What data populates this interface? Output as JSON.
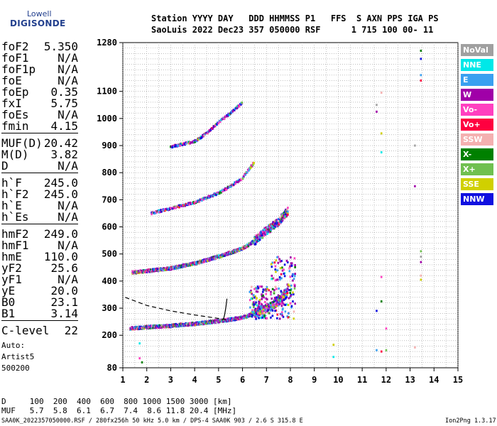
{
  "logo": {
    "line1": "Lowell",
    "line2": "DIGISONDE"
  },
  "header": {
    "line1": "Station YYYY DAY   DDD HHMMSS P1   FFS  S AXN PPS IGA PS",
    "line2": "SaoLuis 2022 Dec23 357 050000 RSF      1 715 100 00- 11"
  },
  "params": {
    "group1": [
      {
        "k": "foF2",
        "v": "5.350"
      },
      {
        "k": "foF1",
        "v": "N/A"
      },
      {
        "k": "foF1p",
        "v": "N/A"
      },
      {
        "k": "foE",
        "v": "N/A"
      },
      {
        "k": "foEp",
        "v": "0.35"
      },
      {
        "k": "fxI",
        "v": "5.75"
      },
      {
        "k": "foEs",
        "v": "N/A"
      },
      {
        "k": "fmin",
        "v": "4.15"
      }
    ],
    "group2": [
      {
        "k": "MUF(D)",
        "v": "20.42"
      },
      {
        "k": "M(D)",
        "v": "3.82"
      },
      {
        "k": "D",
        "v": "N/A"
      }
    ],
    "group3": [
      {
        "k": "h`F",
        "v": "245.0"
      },
      {
        "k": "h`F2",
        "v": "245.0"
      },
      {
        "k": "h`E",
        "v": "N/A"
      },
      {
        "k": "h`Es",
        "v": "N/A"
      }
    ],
    "group4": [
      {
        "k": "hmF2",
        "v": "249.0"
      },
      {
        "k": "hmF1",
        "v": "N/A"
      },
      {
        "k": "hmE",
        "v": "110.0"
      },
      {
        "k": "yF2",
        "v": "25.6"
      },
      {
        "k": "yF1",
        "v": "N/A"
      },
      {
        "k": "yE",
        "v": "20.0"
      },
      {
        "k": "B0",
        "v": "23.1"
      },
      {
        "k": "B1",
        "v": "3.14"
      }
    ],
    "group5": [
      {
        "k": "C-level",
        "v": "22"
      }
    ]
  },
  "autoscaling": {
    "line1": "Auto:",
    "line2": "Artist5",
    "line3": "500200"
  },
  "legend": [
    {
      "label": "NoVal",
      "color": "#a0a0a0"
    },
    {
      "label": "NNE",
      "color": "#00e8e8"
    },
    {
      "label": "E",
      "color": "#3aa0f0"
    },
    {
      "label": "W",
      "color": "#a000a8"
    },
    {
      "label": "Vo-",
      "color": "#ff40c0"
    },
    {
      "label": "Vo+",
      "color": "#ff0040"
    },
    {
      "label": "SSW",
      "color": "#f4b0b0"
    },
    {
      "label": "X-",
      "color": "#008000"
    },
    {
      "label": "X+",
      "color": "#70c050"
    },
    {
      "label": "SSE",
      "color": "#d0d000"
    },
    {
      "label": "NNW",
      "color": "#1010e0"
    }
  ],
  "muf_table": {
    "d_row": "D     100  200  400  600  800 1000 1500 3000 [km]",
    "muf_row": "MUF   5.7  5.8  6.1  6.7  7.4  8.6 11.8 20.4 [MHz]"
  },
  "footer": {
    "line": "SAA0K_2022357050000.RSF / 280fx256h 50 kHz 5.0 km / DPS-4 SAA0K 903 / 2.6 S 315.8 E",
    "version": "Ion2Png 1.3.17"
  },
  "chart_data": {
    "type": "scatter",
    "title": "",
    "xlabel": "",
    "ylabel": "",
    "xlim": [
      1,
      15
    ],
    "ylim": [
      80,
      1280
    ],
    "x_ticks": [
      1,
      2,
      3,
      4,
      5,
      6,
      7,
      8,
      9,
      10,
      11,
      12,
      13,
      14,
      15
    ],
    "y_ticks": [
      80,
      200,
      300,
      400,
      500,
      600,
      700,
      800,
      900,
      1000,
      1100,
      1280
    ],
    "grid": true,
    "traces": [
      {
        "name": "O-trace 1st hop",
        "x": [
          1.3,
          2,
          3,
          4,
          5,
          5.5,
          6,
          6.5,
          7,
          7.5,
          7.9
        ],
        "y": [
          225,
          230,
          235,
          242,
          252,
          258,
          265,
          280,
          300,
          325,
          360
        ]
      },
      {
        "name": "O-trace 2nd hop",
        "x": [
          1.4,
          2,
          3,
          4,
          5,
          5.5,
          6,
          6.5,
          7,
          7.5,
          7.9
        ],
        "y": [
          432,
          437,
          447,
          465,
          490,
          505,
          520,
          548,
          585,
          620,
          660
        ]
      },
      {
        "name": "O-trace 3rd hop",
        "x": [
          2.2,
          3,
          4,
          5,
          5.5,
          6,
          6.5
        ],
        "y": [
          650,
          668,
          690,
          725,
          750,
          780,
          840
        ]
      },
      {
        "name": "O-trace 4th hop",
        "x": [
          3,
          4,
          4.5,
          5,
          5.5,
          6
        ],
        "y": [
          895,
          915,
          945,
          985,
          1020,
          1060
        ]
      }
    ],
    "model_curve": {
      "x": [
        1.1,
        2,
        3,
        4,
        5,
        5.3
      ],
      "y": [
        340,
        310,
        290,
        275,
        262,
        258
      ]
    },
    "profile_curve": {
      "x": [
        5.2,
        5.25,
        5.3,
        5.35
      ],
      "y": [
        258,
        275,
        300,
        335
      ]
    },
    "scattered_echoes": [
      {
        "x": 11.6,
        "y": 1050
      },
      {
        "x": 11.6,
        "y": 1025
      },
      {
        "x": 11.8,
        "y": 1095
      },
      {
        "x": 11.8,
        "y": 945
      },
      {
        "x": 11.8,
        "y": 875
      },
      {
        "x": 11.8,
        "y": 415
      },
      {
        "x": 11.8,
        "y": 325
      },
      {
        "x": 11.6,
        "y": 290
      },
      {
        "x": 11.6,
        "y": 145
      },
      {
        "x": 11.8,
        "y": 140
      },
      {
        "x": 12,
        "y": 145
      },
      {
        "x": 13.2,
        "y": 900
      },
      {
        "x": 13.2,
        "y": 750
      },
      {
        "x": 13.2,
        "y": 155
      },
      {
        "x": 9.8,
        "y": 165
      },
      {
        "x": 9.8,
        "y": 120
      },
      {
        "x": 12,
        "y": 225
      },
      {
        "x": 13.45,
        "y": 1250
      },
      {
        "x": 13.45,
        "y": 1220
      },
      {
        "x": 13.45,
        "y": 1160
      },
      {
        "x": 13.45,
        "y": 1140
      },
      {
        "x": 13.45,
        "y": 510
      },
      {
        "x": 13.45,
        "y": 490
      },
      {
        "x": 13.45,
        "y": 470
      },
      {
        "x": 13.45,
        "y": 420
      },
      {
        "x": 13.45,
        "y": 405
      },
      {
        "x": 1.7,
        "y": 170
      },
      {
        "x": 1.7,
        "y": 115
      },
      {
        "x": 1.8,
        "y": 100
      }
    ]
  }
}
